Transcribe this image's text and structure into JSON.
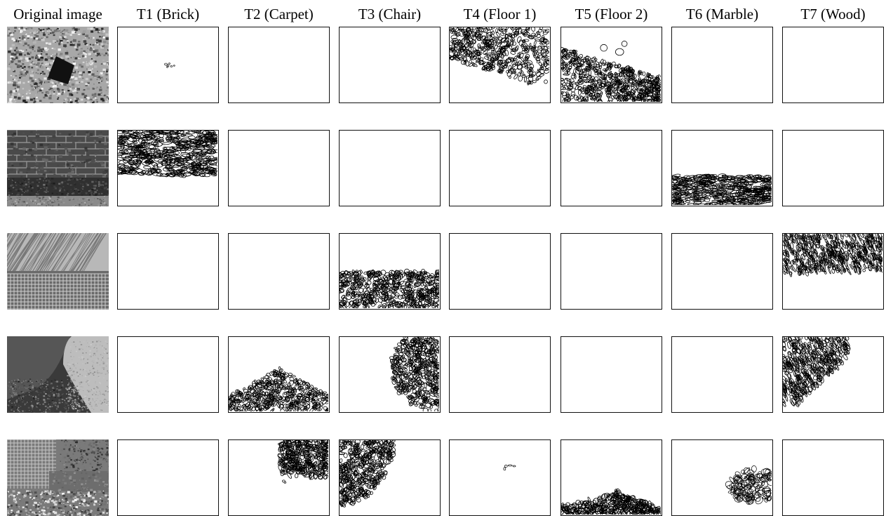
{
  "figure": {
    "headers": [
      "Original image",
      "T1 (Brick)",
      "T2 (Carpet)",
      "T3 (Chair)",
      "T4 (Floor 1)",
      "T5 (Floor 2)",
      "T6 (Marble)",
      "T7 (Wood)"
    ]
  },
  "rows": [
    {
      "original": "gravel-with-dark-patch",
      "textures_present": [
        "T1",
        "T4",
        "T5"
      ]
    },
    {
      "original": "brick-wall-over-granite",
      "textures_present": [
        "T1",
        "T6"
      ]
    },
    {
      "original": "wood-grain-over-checkered-fabric",
      "textures_present": [
        "T3",
        "T7"
      ]
    },
    {
      "original": "wood-and-fabric-cushion-over-carpet",
      "textures_present": [
        "T2",
        "T3",
        "T7"
      ]
    },
    {
      "original": "fabric-carpet-marble-floor-mix",
      "textures_present": [
        "T2",
        "T3",
        "T4",
        "T5",
        "T6"
      ]
    }
  ]
}
